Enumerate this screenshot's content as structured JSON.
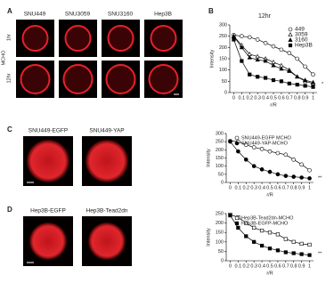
{
  "panels": [
    "A",
    "B",
    "C",
    "D"
  ],
  "panel_a": {
    "columns": [
      "SNU449",
      "SNU3059",
      "SNU3160",
      "Hep3B"
    ],
    "rows": [
      "1hr",
      "12hr"
    ],
    "row_group": "MCHO"
  },
  "panel_c": {
    "columns": [
      "SNU449-EGFP",
      "SNU449-YAP"
    ]
  },
  "panel_d": {
    "columns": [
      "Hep3B-EGFP",
      "Hep3B-Tead2dn"
    ]
  },
  "chart_data": [
    {
      "type": "line",
      "title": "12hr",
      "xlabel": "r/R",
      "ylabel": "Intensity",
      "x": [
        0,
        0.1,
        0.2,
        0.3,
        0.4,
        0.5,
        0.6,
        0.7,
        0.8,
        0.9,
        1
      ],
      "xlim": [
        -0.05,
        1.05
      ],
      "xticks": [
        0,
        0.1,
        0.2,
        0.3,
        0.4,
        0.5,
        0.6,
        0.7,
        0.8,
        0.9,
        1
      ],
      "ylim": [
        0,
        300
      ],
      "yticks": [
        0,
        50,
        100,
        150,
        200,
        250,
        300
      ],
      "legend": "upper right",
      "annotation": "*",
      "series": [
        {
          "name": "449",
          "color": "#000",
          "marker": "circle",
          "filled": false,
          "values": [
            255,
            250,
            245,
            235,
            220,
            205,
            190,
            175,
            150,
            115,
            80
          ]
        },
        {
          "name": "3059",
          "color": "#000",
          "marker": "triangle",
          "filled": false,
          "values": [
            250,
            210,
            170,
            160,
            150,
            135,
            120,
            100,
            70,
            50,
            40
          ]
        },
        {
          "name": "3160",
          "color": "#000",
          "marker": "triangle",
          "filled": true,
          "values": [
            250,
            200,
            155,
            145,
            140,
            120,
            105,
            95,
            70,
            55,
            45
          ]
        },
        {
          "name": "Hep3B",
          "color": "#000",
          "marker": "square",
          "filled": true,
          "values": [
            235,
            140,
            80,
            70,
            65,
            55,
            50,
            40,
            35,
            30,
            25
          ]
        }
      ]
    },
    {
      "type": "line",
      "xlabel": "r/R",
      "ylabel": "Intensity",
      "x": [
        0,
        0.1,
        0.2,
        0.3,
        0.4,
        0.5,
        0.6,
        0.7,
        0.8,
        0.9,
        1
      ],
      "xlim": [
        -0.05,
        1.05
      ],
      "xticks": [
        0,
        0.1,
        0.2,
        0.3,
        0.4,
        0.5,
        0.6,
        0.7,
        0.8,
        0.9,
        1
      ],
      "ylim": [
        0,
        300
      ],
      "yticks": [
        0,
        50,
        100,
        150,
        200,
        250,
        300
      ],
      "legend": "upper right",
      "annotation": "**",
      "series": [
        {
          "name": "SNU449-EGFP MCHO",
          "color": "#000",
          "marker": "circle",
          "filled": false,
          "values": [
            255,
            250,
            230,
            215,
            205,
            190,
            180,
            170,
            140,
            110,
            75
          ]
        },
        {
          "name": "SNU449-YAP-MCHO",
          "color": "#000",
          "marker": "circle",
          "filled": true,
          "values": [
            250,
            190,
            140,
            100,
            80,
            65,
            50,
            40,
            35,
            30,
            25
          ]
        }
      ]
    },
    {
      "type": "line",
      "xlabel": "r/R",
      "ylabel": "Intensity",
      "x": [
        0,
        0.1,
        0.2,
        0.3,
        0.4,
        0.5,
        0.6,
        0.7,
        0.8,
        0.9,
        1
      ],
      "xlim": [
        -0.05,
        1.05
      ],
      "xticks": [
        0,
        0.1,
        0.2,
        0.3,
        0.4,
        0.5,
        0.6,
        0.7,
        0.8,
        0.9,
        1
      ],
      "ylim": [
        0,
        250
      ],
      "yticks": [
        0,
        50,
        100,
        150,
        200,
        250
      ],
      "legend": "upper right",
      "annotation": "**",
      "series": [
        {
          "name": "Hep3B-Tead2dn-MCHO",
          "color": "#000",
          "marker": "square",
          "filled": false,
          "values": [
            245,
            230,
            200,
            175,
            160,
            150,
            140,
            115,
            100,
            90,
            85
          ]
        },
        {
          "name": "Hep3B-EGFP-MCHO",
          "color": "#000",
          "marker": "square",
          "filled": true,
          "values": [
            240,
            175,
            130,
            100,
            80,
            65,
            55,
            45,
            40,
            35,
            30
          ]
        }
      ]
    }
  ]
}
